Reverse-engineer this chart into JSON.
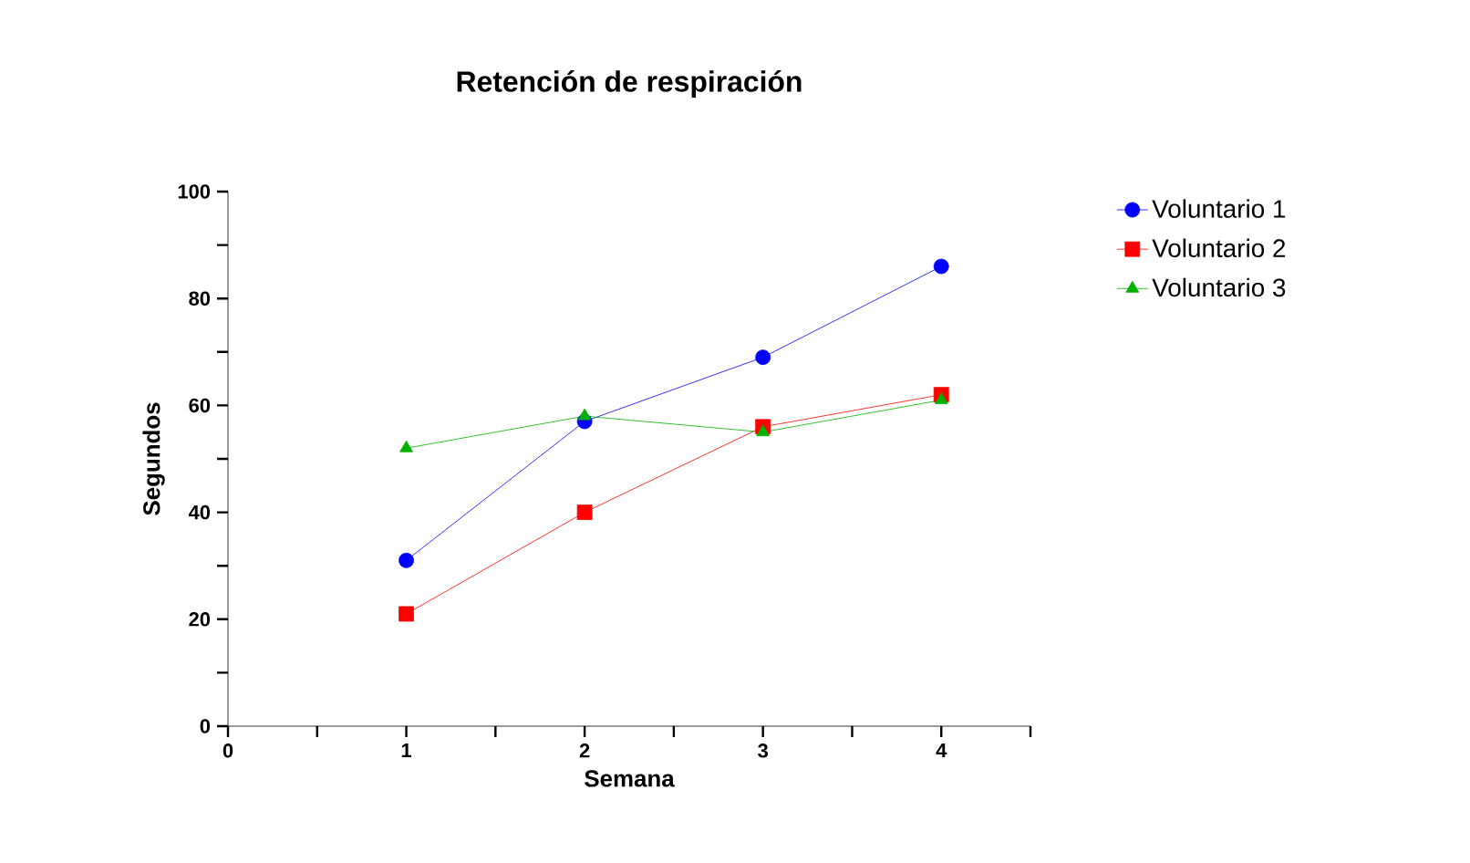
{
  "chart_data": {
    "type": "line",
    "title": "Retención de respiración",
    "xlabel": "Semana",
    "ylabel": "Segundos",
    "x": [
      1,
      2,
      3,
      4
    ],
    "xlim": [
      0,
      4.5
    ],
    "xticks": [
      0,
      {
        "value": 0.5,
        "label": null
      },
      1,
      {
        "value": 1.5,
        "label": null
      },
      2,
      {
        "value": 2.5,
        "label": null
      },
      3,
      {
        "value": 3.5,
        "label": null
      },
      4,
      {
        "value": 4.5,
        "label": null
      }
    ],
    "ylim": [
      0,
      100
    ],
    "yticks": [
      0,
      {
        "value": 10,
        "label": null
      },
      20,
      {
        "value": 30,
        "label": null
      },
      40,
      {
        "value": 50,
        "label": null
      },
      60,
      {
        "value": 70,
        "label": null
      },
      80,
      {
        "value": 90,
        "label": null
      },
      100
    ],
    "legend": "right",
    "line_style": "solid",
    "series": [
      {
        "name": "Voluntario 1",
        "color": "#0000ff",
        "marker": "circle",
        "values": [
          31,
          57,
          69,
          86
        ]
      },
      {
        "name": "Voluntario 2",
        "color": "#ff0000",
        "marker": "square",
        "values": [
          21,
          40,
          56,
          62
        ]
      },
      {
        "name": "Voluntario 3",
        "color": "#00b000",
        "marker": "triangle",
        "values": [
          52,
          58,
          55,
          61
        ]
      }
    ]
  }
}
